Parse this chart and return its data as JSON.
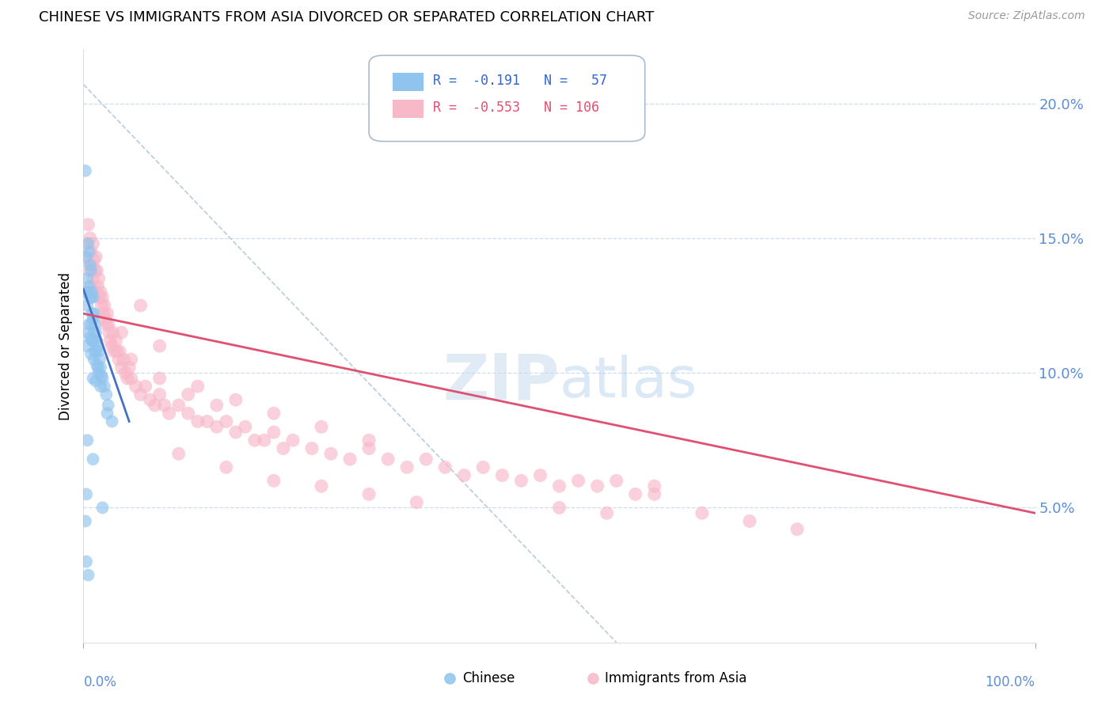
{
  "title": "CHINESE VS IMMIGRANTS FROM ASIA DIVORCED OR SEPARATED CORRELATION CHART",
  "source": "Source: ZipAtlas.com",
  "ylabel": "Divorced or Separated",
  "right_yticks": [
    "5.0%",
    "10.0%",
    "15.0%",
    "20.0%"
  ],
  "right_ytick_vals": [
    0.05,
    0.1,
    0.15,
    0.2
  ],
  "ylim": [
    0.0,
    0.22
  ],
  "xlim": [
    0.0,
    1.0
  ],
  "watermark": "ZIPatlas",
  "blue_color": "#90C4EE",
  "pink_color": "#F7B8C8",
  "blue_line_color": "#4472C4",
  "pink_line_color": "#E05070",
  "dashed_line_color": "#B8CCDD",
  "grid_color": "#DDEEFF",
  "blue_line_x": [
    0.0,
    0.048
  ],
  "blue_line_y": [
    0.131,
    0.082
  ],
  "pink_line_x": [
    0.0,
    1.0
  ],
  "pink_line_y": [
    0.122,
    0.048
  ],
  "dash_line_x": [
    0.0,
    0.56
  ],
  "dash_line_y": [
    0.207,
    0.0
  ],
  "chinese_x": [
    0.002,
    0.003,
    0.003,
    0.003,
    0.004,
    0.004,
    0.005,
    0.005,
    0.005,
    0.006,
    0.006,
    0.006,
    0.007,
    0.007,
    0.007,
    0.008,
    0.008,
    0.008,
    0.008,
    0.009,
    0.009,
    0.009,
    0.01,
    0.01,
    0.01,
    0.01,
    0.011,
    0.011,
    0.011,
    0.012,
    0.012,
    0.013,
    0.013,
    0.013,
    0.014,
    0.014,
    0.015,
    0.015,
    0.016,
    0.016,
    0.017,
    0.018,
    0.018,
    0.019,
    0.02,
    0.022,
    0.024,
    0.026,
    0.004,
    0.03,
    0.003,
    0.01,
    0.025,
    0.002,
    0.02,
    0.003,
    0.005
  ],
  "chinese_y": [
    0.175,
    0.143,
    0.13,
    0.11,
    0.135,
    0.125,
    0.148,
    0.13,
    0.115,
    0.145,
    0.132,
    0.118,
    0.14,
    0.128,
    0.113,
    0.138,
    0.128,
    0.118,
    0.107,
    0.13,
    0.122,
    0.112,
    0.128,
    0.12,
    0.112,
    0.098,
    0.122,
    0.115,
    0.105,
    0.118,
    0.108,
    0.115,
    0.108,
    0.097,
    0.112,
    0.103,
    0.11,
    0.102,
    0.108,
    0.1,
    0.105,
    0.102,
    0.095,
    0.099,
    0.098,
    0.095,
    0.092,
    0.088,
    0.075,
    0.082,
    0.055,
    0.068,
    0.085,
    0.045,
    0.05,
    0.03,
    0.025
  ],
  "asia_x": [
    0.003,
    0.004,
    0.005,
    0.006,
    0.007,
    0.008,
    0.008,
    0.009,
    0.01,
    0.01,
    0.011,
    0.012,
    0.013,
    0.013,
    0.014,
    0.015,
    0.016,
    0.017,
    0.018,
    0.019,
    0.02,
    0.021,
    0.022,
    0.023,
    0.024,
    0.025,
    0.026,
    0.027,
    0.028,
    0.03,
    0.031,
    0.032,
    0.034,
    0.035,
    0.037,
    0.038,
    0.04,
    0.042,
    0.044,
    0.046,
    0.048,
    0.05,
    0.055,
    0.06,
    0.065,
    0.07,
    0.075,
    0.08,
    0.085,
    0.09,
    0.1,
    0.11,
    0.12,
    0.13,
    0.14,
    0.15,
    0.16,
    0.17,
    0.18,
    0.19,
    0.2,
    0.21,
    0.22,
    0.24,
    0.26,
    0.28,
    0.3,
    0.32,
    0.34,
    0.36,
    0.38,
    0.4,
    0.42,
    0.44,
    0.46,
    0.48,
    0.5,
    0.52,
    0.54,
    0.56,
    0.58,
    0.6,
    0.04,
    0.06,
    0.08,
    0.12,
    0.16,
    0.2,
    0.25,
    0.3,
    0.1,
    0.15,
    0.2,
    0.25,
    0.3,
    0.35,
    0.05,
    0.08,
    0.11,
    0.14,
    0.5,
    0.55,
    0.6,
    0.65,
    0.7,
    0.75
  ],
  "asia_y": [
    0.148,
    0.142,
    0.155,
    0.138,
    0.15,
    0.145,
    0.132,
    0.14,
    0.148,
    0.135,
    0.142,
    0.138,
    0.143,
    0.13,
    0.138,
    0.132,
    0.135,
    0.128,
    0.13,
    0.125,
    0.128,
    0.122,
    0.125,
    0.12,
    0.118,
    0.122,
    0.118,
    0.115,
    0.112,
    0.11,
    0.115,
    0.108,
    0.112,
    0.108,
    0.105,
    0.108,
    0.102,
    0.105,
    0.1,
    0.098,
    0.102,
    0.098,
    0.095,
    0.092,
    0.095,
    0.09,
    0.088,
    0.092,
    0.088,
    0.085,
    0.088,
    0.085,
    0.082,
    0.082,
    0.08,
    0.082,
    0.078,
    0.08,
    0.075,
    0.075,
    0.078,
    0.072,
    0.075,
    0.072,
    0.07,
    0.068,
    0.072,
    0.068,
    0.065,
    0.068,
    0.065,
    0.062,
    0.065,
    0.062,
    0.06,
    0.062,
    0.058,
    0.06,
    0.058,
    0.06,
    0.055,
    0.058,
    0.115,
    0.125,
    0.11,
    0.095,
    0.09,
    0.085,
    0.08,
    0.075,
    0.07,
    0.065,
    0.06,
    0.058,
    0.055,
    0.052,
    0.105,
    0.098,
    0.092,
    0.088,
    0.05,
    0.048,
    0.055,
    0.048,
    0.045,
    0.042
  ]
}
